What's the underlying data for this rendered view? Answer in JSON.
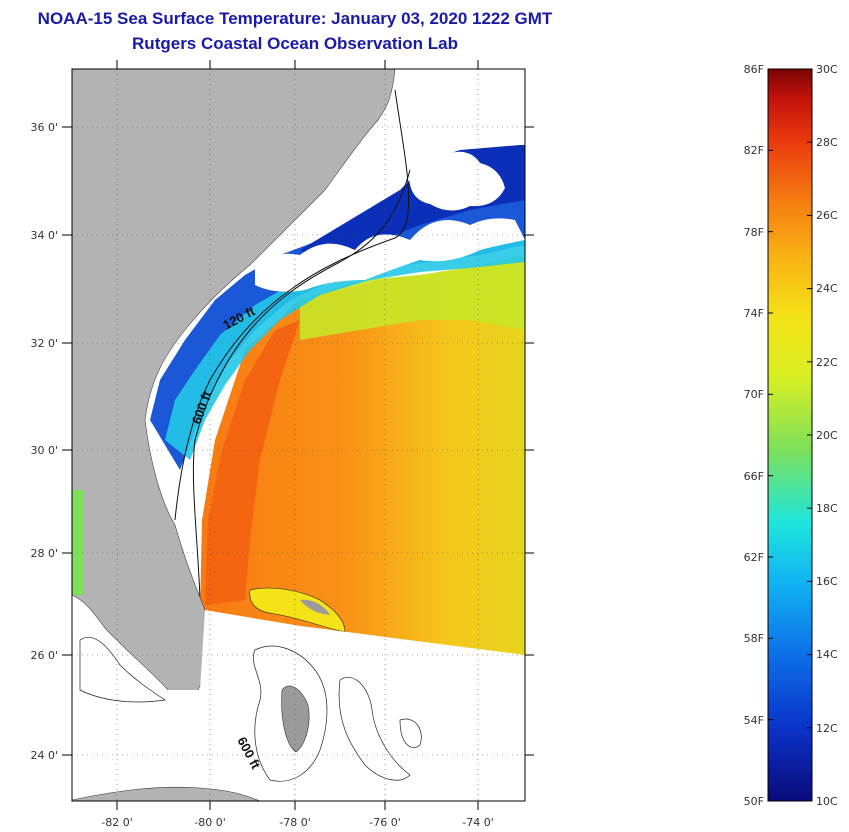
{
  "title": "NOAA-15 Sea Surface Temperature:  January 03, 2020 1222 GMT",
  "subtitle": "Rutgers Coastal Ocean Observation Lab",
  "map": {
    "lon_ticks": [
      "-82 0'",
      "-80 0'",
      "-78 0'",
      "-76 0'",
      "-74 0'"
    ],
    "lat_ticks": [
      "36 0'",
      "34 0'",
      "32 0'",
      "30 0'",
      "28 0'",
      "26 0'",
      "24 0'"
    ],
    "contour_labels": [
      "120 ft",
      "600 ft",
      "600 ft"
    ],
    "colors": {
      "land": "#b3b3b3",
      "cloud": "#ffffff",
      "frame": "#000000"
    }
  },
  "colorbar": {
    "fahrenheit": [
      "86F",
      "82F",
      "78F",
      "74F",
      "70F",
      "66F",
      "62F",
      "58F",
      "54F",
      "50F"
    ],
    "celsius": [
      "30C",
      "28C",
      "26C",
      "24C",
      "22C",
      "20C",
      "18C",
      "16C",
      "14C",
      "12C",
      "10C"
    ],
    "range_c": [
      10,
      30
    ],
    "colors": [
      "#0a0a7a",
      "#0b33c9",
      "#0c70e8",
      "#12b4f2",
      "#1ee6dc",
      "#7de05a",
      "#d9ef22",
      "#f3e317",
      "#f9b414",
      "#f57c10",
      "#ea3b0e",
      "#c3120b",
      "#7a0404"
    ]
  }
}
